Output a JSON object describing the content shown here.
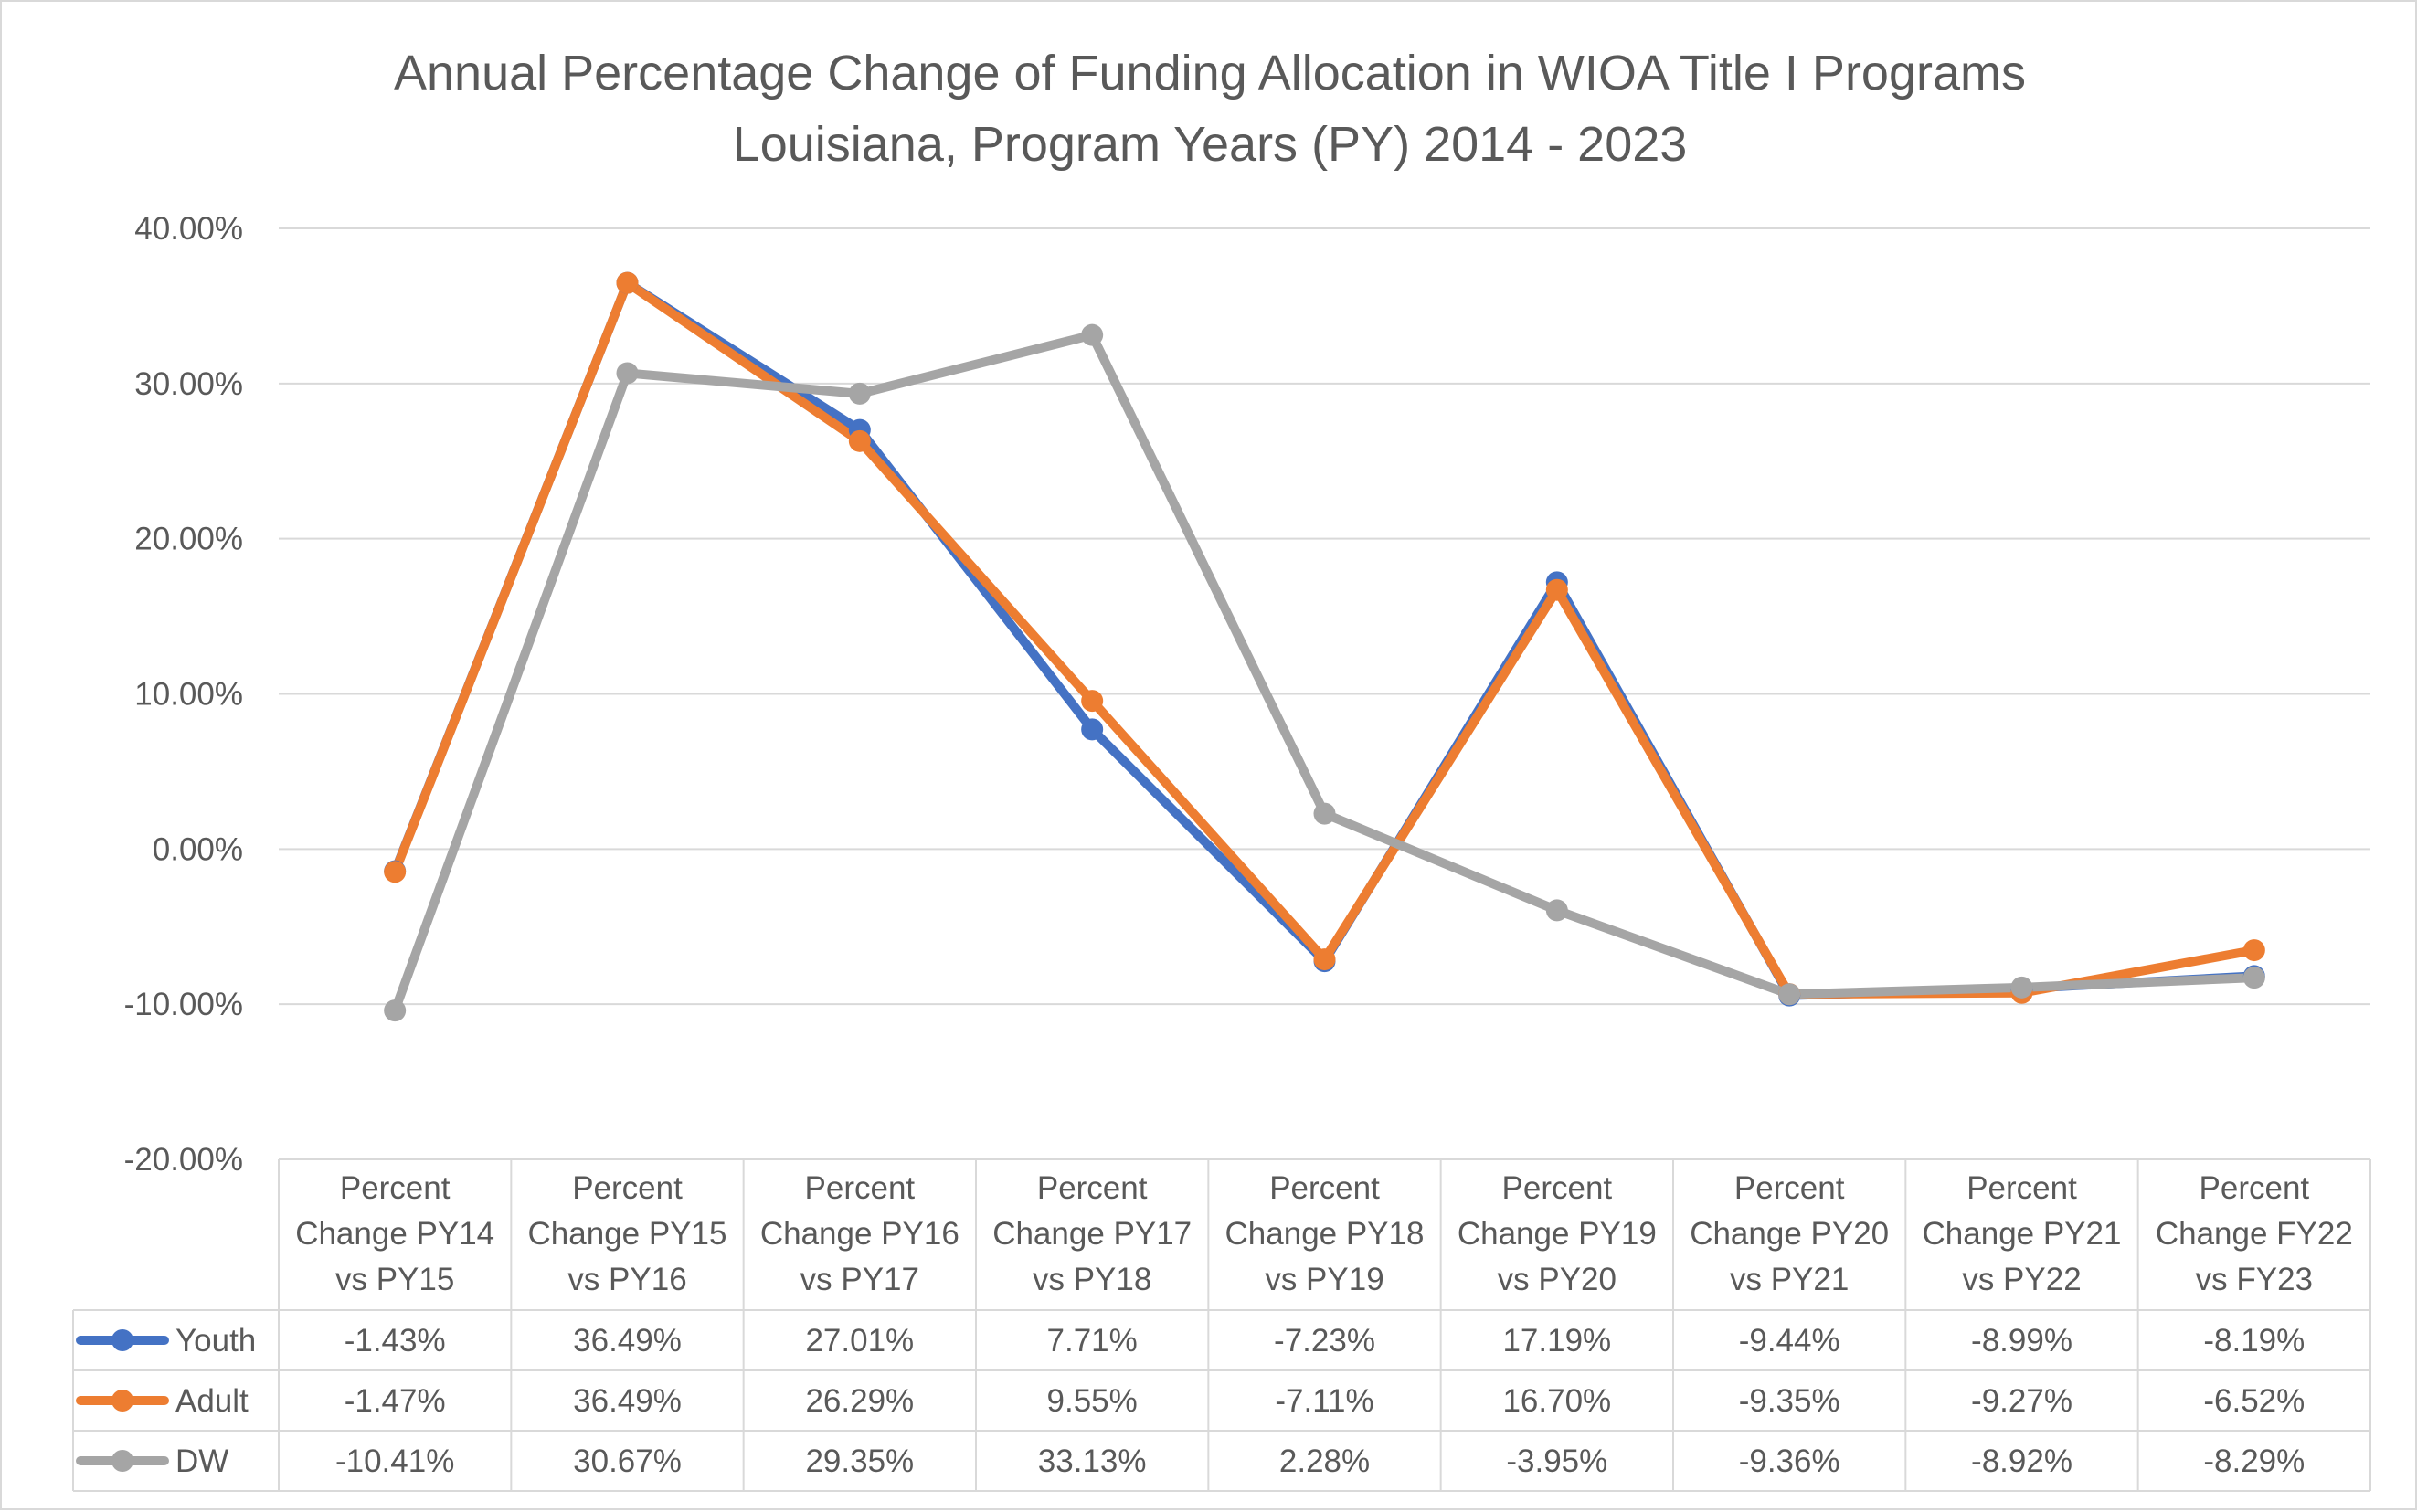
{
  "chart_data": {
    "type": "line",
    "title": "Annual Percentage Change of Funding Allocation in WIOA Title I Programs",
    "subtitle": "Louisiana, Program Years (PY) 2014 - 2023",
    "categories": [
      [
        "Percent",
        "Change PY14",
        "vs PY15"
      ],
      [
        "Percent",
        "Change PY15",
        "vs PY16"
      ],
      [
        "Percent",
        "Change PY16",
        "vs PY17"
      ],
      [
        "Percent",
        "Change PY17",
        "vs PY18"
      ],
      [
        "Percent",
        "Change PY18",
        "vs PY19"
      ],
      [
        "Percent",
        "Change PY19",
        "vs PY20"
      ],
      [
        "Percent",
        "Change PY20",
        "vs PY21"
      ],
      [
        "Percent",
        "Change PY21",
        "vs PY22"
      ],
      [
        "Percent",
        "Change FY22",
        "vs FY23"
      ]
    ],
    "y_ticks": [
      "40.00%",
      "30.00%",
      "20.00%",
      "10.00%",
      "0.00%",
      "-10.00%",
      "-20.00%"
    ],
    "ylim": [
      -20,
      40
    ],
    "grid": true,
    "legend": "data-table",
    "series": [
      {
        "name": "Youth",
        "color": "#4472c4",
        "values": [
          -1.43,
          36.49,
          27.01,
          7.71,
          -7.23,
          17.19,
          -9.44,
          -8.99,
          -8.19
        ],
        "labels": [
          "-1.43%",
          "36.49%",
          "27.01%",
          "7.71%",
          "-7.23%",
          "17.19%",
          "-9.44%",
          "-8.99%",
          "-8.19%"
        ]
      },
      {
        "name": "Adult",
        "color": "#ed7d31",
        "values": [
          -1.47,
          36.49,
          26.29,
          9.55,
          -7.11,
          16.7,
          -9.35,
          -9.27,
          -6.52
        ],
        "labels": [
          "-1.47%",
          "36.49%",
          "26.29%",
          "9.55%",
          "-7.11%",
          "16.70%",
          "-9.35%",
          "-9.27%",
          "-6.52%"
        ]
      },
      {
        "name": "DW",
        "color": "#a5a5a5",
        "values": [
          -10.41,
          30.67,
          29.35,
          33.13,
          2.28,
          -3.95,
          -9.36,
          -8.92,
          -8.29
        ],
        "labels": [
          "-10.41%",
          "30.67%",
          "29.35%",
          "33.13%",
          "2.28%",
          "-3.95%",
          "-9.36%",
          "-8.92%",
          "-8.29%"
        ]
      }
    ]
  }
}
